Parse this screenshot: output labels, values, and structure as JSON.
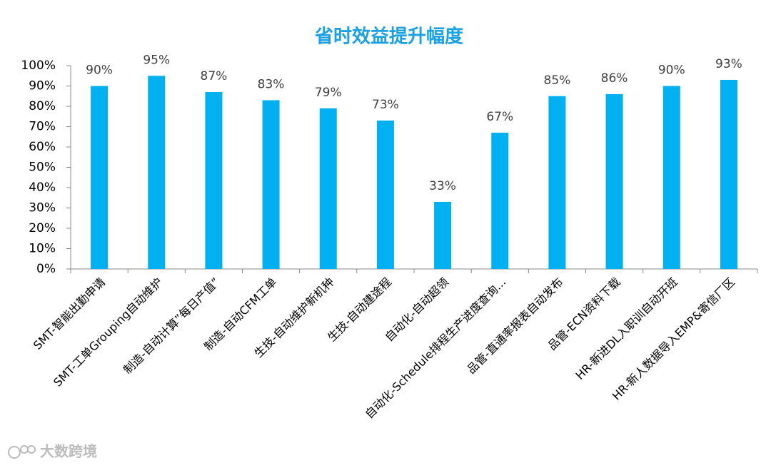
{
  "chart_data": {
    "type": "bar",
    "title": "省时效益提升幅度",
    "categories": [
      "SMT-智能出勤申请",
      "SMT-工单Grouping自动维护",
      "制造-自动计算”每日产值”",
      "制造-自动CFM工单",
      "生技-自动维护新机种",
      "生技-自动建途程",
      "自动化-自动超领",
      "自动化-Schedule排程生产进度查询...",
      "品管-直通率报表自动发布",
      "品管-ECN资料下载",
      "HR-新进DL入职训自动开班",
      "HR-新人数据导入EMP&寄信厂区"
    ],
    "values": [
      90,
      95,
      87,
      83,
      79,
      73,
      33,
      67,
      85,
      86,
      90,
      93
    ],
    "value_labels": [
      "90%",
      "95%",
      "87%",
      "83%",
      "79%",
      "73%",
      "33%",
      "67%",
      "85%",
      "86%",
      "90%",
      "93%"
    ],
    "color": "#00b0f0",
    "ylim": [
      0,
      100
    ],
    "yticks": [
      {
        "value": 0,
        "label": "0%"
      },
      {
        "value": 10,
        "label": "10%"
      },
      {
        "value": 20,
        "label": "20%"
      },
      {
        "value": 30,
        "label": "30%"
      },
      {
        "value": 40,
        "label": "40%"
      },
      {
        "value": 50,
        "label": "50%"
      },
      {
        "value": 60,
        "label": "60%"
      },
      {
        "value": 70,
        "label": "70%"
      },
      {
        "value": 80,
        "label": "80%"
      },
      {
        "value": 90,
        "label": "90%"
      },
      {
        "value": 100,
        "label": "100%"
      }
    ],
    "grid": false
  },
  "watermark": "大数跨境"
}
